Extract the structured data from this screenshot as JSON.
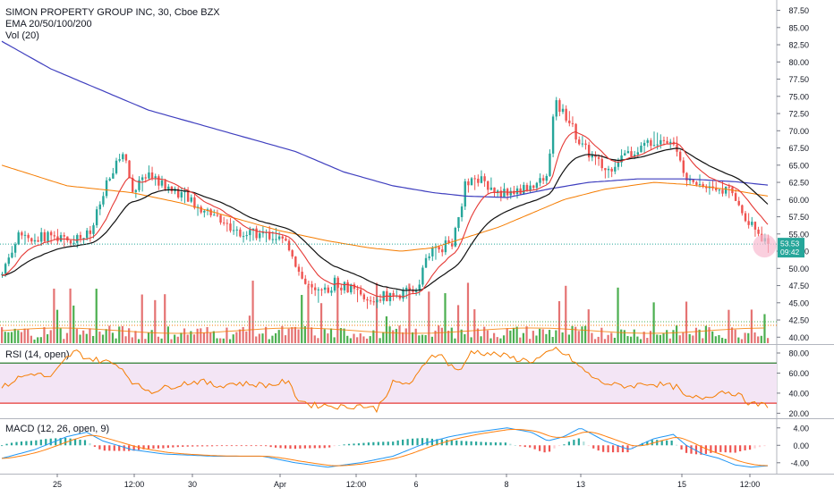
{
  "header": {
    "symbol_line": "SIMON PROPERTY GROUP INC, 30, Cboe BZX",
    "ema_line": "EMA 20/50/100/200",
    "vol_line": "Vol (20)"
  },
  "price_tag": {
    "price": "53.53",
    "countdown": "09:42"
  },
  "colors": {
    "up": "#26a69a",
    "down": "#ef5350",
    "vol_up": "#4caf50",
    "vol_down": "#e57373",
    "ema20": "#e53935",
    "ema50": "#111111",
    "ema100": "#f57c00",
    "ema200": "#3f3fbf",
    "rsi_line": "#f57c00",
    "rsi_band": "#f3e5f5",
    "rsi_upper": "#2e7d32",
    "rsi_lower": "#e53935",
    "macd_line": "#2196f3",
    "signal_line": "#ff7f0e",
    "grid": "#e0e3eb"
  },
  "chart_data": [
    {
      "type": "candlestick",
      "title": "SIMON PROPERTY GROUP INC, 30, Cboe BZX",
      "ylim": [
        39,
        89
      ],
      "y_ticks": [
        "87.50",
        "85.00",
        "82.50",
        "80.00",
        "77.50",
        "75.00",
        "72.50",
        "70.00",
        "67.50",
        "65.00",
        "62.50",
        "60.00",
        "57.50",
        "55.00",
        "52.50",
        "50.00",
        "47.50",
        "45.00",
        "42.50",
        "40.00"
      ],
      "x_ticks": [
        "25",
        "12:00",
        "30",
        "Apr",
        "12:00",
        "6",
        "8",
        "13",
        "15",
        "12:00"
      ],
      "last_price": 53.53,
      "price_anchors": [
        [
          0,
          49
        ],
        [
          5,
          52
        ],
        [
          10,
          54.5
        ],
        [
          20,
          54
        ],
        [
          30,
          55
        ],
        [
          40,
          54
        ],
        [
          55,
          55
        ],
        [
          65,
          62
        ],
        [
          75,
          67
        ],
        [
          82,
          61
        ],
        [
          90,
          64
        ],
        [
          100,
          62
        ],
        [
          110,
          61
        ],
        [
          120,
          59
        ],
        [
          130,
          58
        ],
        [
          140,
          56
        ],
        [
          150,
          55
        ],
        [
          160,
          55
        ],
        [
          170,
          54.5
        ],
        [
          178,
          53
        ],
        [
          182,
          50
        ],
        [
          186,
          48
        ],
        [
          190,
          47
        ],
        [
          196,
          46
        ],
        [
          205,
          48
        ],
        [
          215,
          47
        ],
        [
          225,
          45
        ],
        [
          235,
          46
        ],
        [
          245,
          46
        ],
        [
          255,
          47
        ],
        [
          262,
          52
        ],
        [
          270,
          53
        ],
        [
          278,
          54
        ],
        [
          285,
          62
        ],
        [
          295,
          63
        ],
        [
          305,
          61
        ],
        [
          315,
          61
        ],
        [
          325,
          62
        ],
        [
          335,
          63
        ],
        [
          340,
          74
        ],
        [
          348,
          72
        ],
        [
          356,
          68
        ],
        [
          364,
          66
        ],
        [
          372,
          64
        ],
        [
          380,
          66
        ],
        [
          390,
          67
        ],
        [
          398,
          68.5
        ],
        [
          406,
          69
        ],
        [
          414,
          68
        ],
        [
          420,
          63
        ],
        [
          430,
          62
        ],
        [
          440,
          62
        ],
        [
          448,
          61
        ],
        [
          456,
          58
        ],
        [
          465,
          55
        ],
        [
          470,
          53.5
        ]
      ],
      "ema_series": [
        {
          "name": "EMA 20",
          "period": 20
        },
        {
          "name": "EMA 50",
          "period": 50
        },
        {
          "name": "EMA 100",
          "period": 100
        },
        {
          "name": "EMA 200",
          "period": 200
        }
      ],
      "ema200_anchors": [
        [
          0,
          83
        ],
        [
          30,
          79
        ],
        [
          60,
          76
        ],
        [
          90,
          73
        ],
        [
          120,
          71
        ],
        [
          150,
          69
        ],
        [
          180,
          67
        ],
        [
          210,
          64
        ],
        [
          240,
          62
        ],
        [
          265,
          61
        ],
        [
          285,
          60.5
        ],
        [
          310,
          60.3
        ],
        [
          335,
          61.5
        ],
        [
          360,
          62.5
        ],
        [
          390,
          63
        ],
        [
          420,
          63
        ],
        [
          450,
          62.6
        ],
        [
          470,
          62.1
        ]
      ],
      "ema100_anchors": [
        [
          0,
          65
        ],
        [
          20,
          63.5
        ],
        [
          40,
          62
        ],
        [
          60,
          61.5
        ],
        [
          80,
          61
        ],
        [
          110,
          59.5
        ],
        [
          140,
          57.5
        ],
        [
          170,
          55.5
        ],
        [
          200,
          54
        ],
        [
          225,
          53
        ],
        [
          245,
          52.5
        ],
        [
          265,
          53
        ],
        [
          285,
          54.5
        ],
        [
          305,
          56
        ],
        [
          325,
          58
        ],
        [
          345,
          60
        ],
        [
          370,
          61.5
        ],
        [
          400,
          62.5
        ],
        [
          420,
          62.2
        ],
        [
          445,
          61.5
        ],
        [
          470,
          60.5
        ]
      ]
    },
    {
      "type": "bar",
      "title": "Vol (20)",
      "note": "volume histogram, relative heights",
      "spike_bars": [
        32,
        34,
        42,
        44,
        58,
        86,
        94,
        100,
        152,
        154,
        175,
        184,
        188,
        196,
        206,
        230,
        236,
        250,
        262,
        272,
        280,
        286,
        290,
        342,
        346,
        360,
        378,
        400,
        420,
        446,
        460,
        468
      ],
      "ma_label": "Vol (20)"
    },
    {
      "type": "line",
      "title": "RSI (14, open)",
      "ylim": [
        15,
        88
      ],
      "y_ticks": [
        "80.00",
        "60.00",
        "40.00",
        "20.00"
      ],
      "upper_band": 70,
      "lower_band": 30,
      "rsi_anchors": [
        [
          0,
          45
        ],
        [
          10,
          55
        ],
        [
          20,
          60
        ],
        [
          30,
          55
        ],
        [
          40,
          75
        ],
        [
          45,
          82
        ],
        [
          52,
          75
        ],
        [
          62,
          72
        ],
        [
          72,
          68
        ],
        [
          82,
          48
        ],
        [
          92,
          42
        ],
        [
          102,
          46
        ],
        [
          112,
          50
        ],
        [
          122,
          52
        ],
        [
          132,
          47
        ],
        [
          142,
          50
        ],
        [
          152,
          49
        ],
        [
          165,
          48
        ],
        [
          175,
          52
        ],
        [
          182,
          34
        ],
        [
          190,
          28
        ],
        [
          200,
          28
        ],
        [
          210,
          26
        ],
        [
          220,
          28
        ],
        [
          230,
          24
        ],
        [
          240,
          50
        ],
        [
          252,
          50
        ],
        [
          262,
          76
        ],
        [
          268,
          80
        ],
        [
          275,
          68
        ],
        [
          282,
          62
        ],
        [
          288,
          82
        ],
        [
          296,
          80
        ],
        [
          306,
          78
        ],
        [
          316,
          74
        ],
        [
          326,
          72
        ],
        [
          336,
          80
        ],
        [
          340,
          84
        ],
        [
          348,
          76
        ],
        [
          356,
          64
        ],
        [
          366,
          52
        ],
        [
          376,
          48
        ],
        [
          386,
          47
        ],
        [
          396,
          50
        ],
        [
          406,
          48
        ],
        [
          414,
          46
        ],
        [
          420,
          35
        ],
        [
          432,
          36
        ],
        [
          442,
          42
        ],
        [
          450,
          40
        ],
        [
          460,
          29
        ],
        [
          470,
          28
        ]
      ]
    },
    {
      "type": "line",
      "title": "MACD (12, 26, open, 9)",
      "ylim": [
        -6.5,
        6
      ],
      "y_ticks": [
        "4.00",
        "0.00",
        "-4.00"
      ],
      "series": [
        {
          "name": "MACD"
        },
        {
          "name": "Signal"
        },
        {
          "name": "Histogram"
        }
      ],
      "macd_anchors": [
        [
          0,
          -3
        ],
        [
          20,
          -1
        ],
        [
          40,
          2
        ],
        [
          52,
          3
        ],
        [
          62,
          1
        ],
        [
          80,
          -1
        ],
        [
          100,
          -2
        ],
        [
          130,
          -2.5
        ],
        [
          160,
          -2.5
        ],
        [
          180,
          -4
        ],
        [
          200,
          -5
        ],
        [
          220,
          -4
        ],
        [
          240,
          -2.5
        ],
        [
          260,
          0.5
        ],
        [
          275,
          2
        ],
        [
          290,
          3
        ],
        [
          310,
          4
        ],
        [
          325,
          3
        ],
        [
          335,
          1
        ],
        [
          345,
          2
        ],
        [
          355,
          4
        ],
        [
          370,
          1
        ],
        [
          385,
          -1
        ],
        [
          400,
          1.5
        ],
        [
          412,
          2.5
        ],
        [
          420,
          0
        ],
        [
          430,
          -2
        ],
        [
          440,
          -3
        ],
        [
          450,
          -4.5
        ],
        [
          460,
          -5
        ],
        [
          470,
          -4.7
        ]
      ]
    }
  ]
}
